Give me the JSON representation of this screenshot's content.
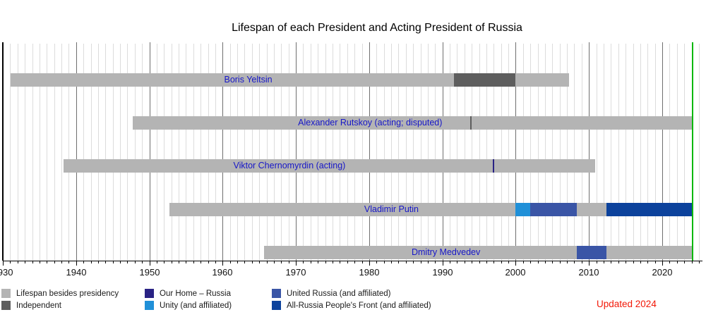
{
  "title": "Lifespan of each President and Acting President of Russia",
  "updated_note": "Updated 2024",
  "colors": {
    "lifespan": "#b4b4b4",
    "independent": "#5e5e5e",
    "our_home_russia": "#292284",
    "unity": "#2090d8",
    "united_russia": "#3a55a6",
    "arpf": "#0c429c",
    "update_line": "#00b70b",
    "name_label": "#1616c8",
    "grid_minor": "#dcdcdc",
    "grid_major": "#6f6f6f",
    "axis": "#000000",
    "updated_note_color": "#f21807"
  },
  "legend": {
    "columns": [
      {
        "items": [
          {
            "key": "lifespan",
            "label": "Lifespan besides presidency"
          },
          {
            "key": "independent",
            "label": "Independent"
          }
        ]
      },
      {
        "items": [
          {
            "key": "our_home_russia",
            "label": "Our Home – Russia"
          },
          {
            "key": "unity",
            "label": "Unity (and affiliated)"
          }
        ]
      },
      {
        "items": [
          {
            "key": "united_russia",
            "label": "United Russia (and affiliated)"
          },
          {
            "key": "arpf",
            "label": "All-Russia People's Front (and affiliated)"
          }
        ]
      }
    ]
  },
  "chart_data": {
    "type": "bar",
    "variant": "horizontal-gantt-timeline",
    "title": "Lifespan of each President and Acting President of Russia",
    "x_axis": {
      "min_year": 1930,
      "max_year": 2025,
      "major_ticks": [
        1930,
        1940,
        1950,
        1960,
        1970,
        1980,
        1990,
        2000,
        2010,
        2020
      ],
      "minor_tick_every": 1,
      "update_line_year": 2024
    },
    "legend_position": "bottom",
    "grid": true,
    "rows": [
      {
        "name": "Boris Yeltsin",
        "segments": [
          {
            "from": 1931.1,
            "to": 1991.54,
            "key": "lifespan"
          },
          {
            "from": 1991.54,
            "to": 1999.99,
            "key": "independent"
          },
          {
            "from": 1999.99,
            "to": 2007.31,
            "key": "lifespan"
          }
        ],
        "markers": []
      },
      {
        "name": "Alexander Rutskoy (acting; disputed)",
        "segments": [
          {
            "from": 1947.71,
            "to": 2024,
            "key": "lifespan"
          }
        ],
        "markers": [
          {
            "year": 1993.75,
            "key": "independent"
          }
        ]
      },
      {
        "name": "Viktor Chernomyrdin (acting)",
        "segments": [
          {
            "from": 1938.27,
            "to": 2010.84,
            "key": "lifespan"
          }
        ],
        "markers": [
          {
            "year": 1996.85,
            "key": "our_home_russia"
          }
        ]
      },
      {
        "name": "Vladimir Putin",
        "segments": [
          {
            "from": 1952.77,
            "to": 1999.99,
            "key": "lifespan"
          },
          {
            "from": 1999.99,
            "to": 2001.95,
            "key": "unity"
          },
          {
            "from": 2001.95,
            "to": 2008.35,
            "key": "united_russia"
          },
          {
            "from": 2008.35,
            "to": 2012.35,
            "key": "lifespan"
          },
          {
            "from": 2012.35,
            "to": 2024,
            "key": "arpf"
          }
        ],
        "markers": []
      },
      {
        "name": "Dmitry Medvedev",
        "segments": [
          {
            "from": 1965.7,
            "to": 2008.35,
            "key": "lifespan"
          },
          {
            "from": 2008.35,
            "to": 2012.35,
            "key": "united_russia"
          },
          {
            "from": 2012.35,
            "to": 2024,
            "key": "lifespan"
          }
        ],
        "markers": []
      }
    ]
  }
}
